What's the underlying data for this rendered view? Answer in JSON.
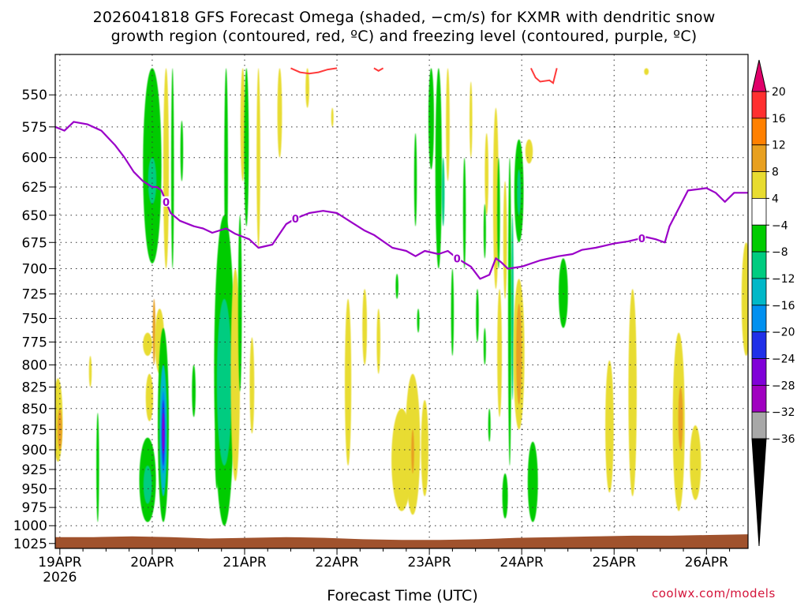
{
  "chart_data": {
    "type": "heatmap",
    "title_line1": "2026041818 GFS Forecast Omega (shaded, −cm/s) for KXMR with dendritic snow",
    "title_line2": "growth region (contoured, red, ºC) and freezing level (contoured, purple, ºC)",
    "xlabel": "Forecast Time (UTC)",
    "credit": "coolwx.com/models",
    "x_ticks": [
      {
        "day": 0,
        "label": "19APR",
        "sub": "2026"
      },
      {
        "day": 1,
        "label": "20APR",
        "sub": ""
      },
      {
        "day": 2,
        "label": "21APR",
        "sub": ""
      },
      {
        "day": 3,
        "label": "22APR",
        "sub": ""
      },
      {
        "day": 4,
        "label": "23APR",
        "sub": ""
      },
      {
        "day": 5,
        "label": "24APR",
        "sub": ""
      },
      {
        "day": 6,
        "label": "25APR",
        "sub": ""
      },
      {
        "day": 7,
        "label": "26APR",
        "sub": ""
      }
    ],
    "xlim_days": [
      -0.05,
      7.45
    ],
    "y_ticks": [
      550,
      575,
      600,
      625,
      650,
      675,
      700,
      725,
      750,
      775,
      800,
      825,
      850,
      875,
      900,
      925,
      950,
      975,
      1000,
      1025
    ],
    "ylim_hPa": [
      520,
      1032
    ],
    "y_scale": "pressure (reversed)",
    "colorbar": {
      "labels": [
        "20",
        "16",
        "12",
        "8",
        "4",
        "−4",
        "−8",
        "−12",
        "−16",
        "−20",
        "−24",
        "−28",
        "−32",
        "−36"
      ],
      "colors": [
        "#ff3030",
        "#ff8000",
        "#e8a020",
        "#e8dc30",
        "#ffffff",
        "#00cc00",
        "#00cc80",
        "#00b8c8",
        "#0090f0",
        "#2030e8",
        "#8000d8",
        "#a000c0",
        "#a8a8a8"
      ],
      "top_color": "#e0006a",
      "bottom_color": "#000000"
    },
    "omega_features": [
      {
        "day": -0.02,
        "p1": 815,
        "p2": 915,
        "w": 0.1,
        "color": "#e8dc30"
      },
      {
        "day": 0.0,
        "p1": 850,
        "p2": 900,
        "w": 0.05,
        "color": "#e8a020"
      },
      {
        "day": 0.33,
        "p1": 790,
        "p2": 825,
        "w": 0.03,
        "color": "#e8dc30"
      },
      {
        "day": 0.41,
        "p1": 855,
        "p2": 995,
        "w": 0.03,
        "color": "#00cc00"
      },
      {
        "day": 0.95,
        "p1": 765,
        "p2": 790,
        "w": 0.1,
        "color": "#e8dc30"
      },
      {
        "day": 0.97,
        "p1": 810,
        "p2": 865,
        "w": 0.08,
        "color": "#e8dc30"
      },
      {
        "day": 0.95,
        "p1": 885,
        "p2": 995,
        "w": 0.18,
        "color": "#00cc00"
      },
      {
        "day": 0.95,
        "p1": 920,
        "p2": 970,
        "w": 0.09,
        "color": "#00cc80"
      },
      {
        "day": 1.0,
        "p1": 530,
        "p2": 695,
        "w": 0.2,
        "color": "#00cc00"
      },
      {
        "day": 1.0,
        "p1": 600,
        "p2": 640,
        "w": 0.09,
        "color": "#00cc80"
      },
      {
        "day": 1.02,
        "p1": 730,
        "p2": 800,
        "w": 0.03,
        "color": "#e8a020"
      },
      {
        "day": 1.08,
        "p1": 740,
        "p2": 810,
        "w": 0.1,
        "color": "#e8dc30"
      },
      {
        "day": 1.12,
        "p1": 760,
        "p2": 995,
        "w": 0.12,
        "color": "#00cc00"
      },
      {
        "day": 1.12,
        "p1": 800,
        "p2": 960,
        "w": 0.08,
        "color": "#00b8c8"
      },
      {
        "day": 1.12,
        "p1": 830,
        "p2": 930,
        "w": 0.05,
        "color": "#0090f0"
      },
      {
        "day": 1.12,
        "p1": 840,
        "p2": 920,
        "w": 0.03,
        "color": "#2030e8"
      },
      {
        "day": 1.12,
        "p1": 855,
        "p2": 905,
        "w": 0.015,
        "color": "#8000d8"
      },
      {
        "day": 1.15,
        "p1": 530,
        "p2": 700,
        "w": 0.06,
        "color": "#e8dc30"
      },
      {
        "day": 1.22,
        "p1": 530,
        "p2": 700,
        "w": 0.03,
        "color": "#00cc00"
      },
      {
        "day": 1.32,
        "p1": 570,
        "p2": 620,
        "w": 0.03,
        "color": "#00cc00"
      },
      {
        "day": 1.45,
        "p1": 800,
        "p2": 860,
        "w": 0.04,
        "color": "#00cc00"
      },
      {
        "day": 1.7,
        "p1": 860,
        "p2": 950,
        "w": 0.04,
        "color": "#00cc00"
      },
      {
        "day": 1.78,
        "p1": 650,
        "p2": 1000,
        "w": 0.22,
        "color": "#00cc00"
      },
      {
        "day": 1.78,
        "p1": 730,
        "p2": 920,
        "w": 0.16,
        "color": "#00cc80"
      },
      {
        "day": 1.8,
        "p1": 530,
        "p2": 700,
        "w": 0.04,
        "color": "#00cc00"
      },
      {
        "day": 1.9,
        "p1": 700,
        "p2": 940,
        "w": 0.1,
        "color": "#e8dc30"
      },
      {
        "day": 1.95,
        "p1": 650,
        "p2": 830,
        "w": 0.04,
        "color": "#00cc00"
      },
      {
        "day": 2.08,
        "p1": 770,
        "p2": 880,
        "w": 0.05,
        "color": "#e8dc30"
      },
      {
        "day": 1.98,
        "p1": 530,
        "p2": 620,
        "w": 0.05,
        "color": "#e8dc30"
      },
      {
        "day": 2.02,
        "p1": 530,
        "p2": 660,
        "w": 0.05,
        "color": "#00cc00"
      },
      {
        "day": 2.15,
        "p1": 530,
        "p2": 680,
        "w": 0.04,
        "color": "#e8dc30"
      },
      {
        "day": 2.38,
        "p1": 530,
        "p2": 600,
        "w": 0.05,
        "color": "#e8dc30"
      },
      {
        "day": 2.68,
        "p1": 530,
        "p2": 560,
        "w": 0.04,
        "color": "#e8dc30"
      },
      {
        "day": 2.95,
        "p1": 560,
        "p2": 575,
        "w": 0.02,
        "color": "#e8dc30"
      },
      {
        "day": 3.12,
        "p1": 730,
        "p2": 920,
        "w": 0.07,
        "color": "#e8dc30"
      },
      {
        "day": 3.3,
        "p1": 720,
        "p2": 800,
        "w": 0.05,
        "color": "#e8dc30"
      },
      {
        "day": 3.45,
        "p1": 740,
        "p2": 810,
        "w": 0.04,
        "color": "#e8dc30"
      },
      {
        "day": 3.65,
        "p1": 705,
        "p2": 730,
        "w": 0.03,
        "color": "#00cc00"
      },
      {
        "day": 3.7,
        "p1": 850,
        "p2": 980,
        "w": 0.22,
        "color": "#e8dc30"
      },
      {
        "day": 3.82,
        "p1": 810,
        "p2": 985,
        "w": 0.16,
        "color": "#e8dc30"
      },
      {
        "day": 3.95,
        "p1": 840,
        "p2": 960,
        "w": 0.08,
        "color": "#e8dc30"
      },
      {
        "day": 3.82,
        "p1": 875,
        "p2": 930,
        "w": 0.03,
        "color": "#e8a020"
      },
      {
        "day": 3.88,
        "p1": 740,
        "p2": 765,
        "w": 0.02,
        "color": "#00cc00"
      },
      {
        "day": 3.85,
        "p1": 580,
        "p2": 660,
        "w": 0.03,
        "color": "#00cc00"
      },
      {
        "day": 4.02,
        "p1": 530,
        "p2": 610,
        "w": 0.06,
        "color": "#00cc00"
      },
      {
        "day": 4.1,
        "p1": 530,
        "p2": 700,
        "w": 0.07,
        "color": "#00cc00"
      },
      {
        "day": 4.15,
        "p1": 600,
        "p2": 660,
        "w": 0.03,
        "color": "#00cc80"
      },
      {
        "day": 4.2,
        "p1": 530,
        "p2": 620,
        "w": 0.04,
        "color": "#e8dc30"
      },
      {
        "day": 4.25,
        "p1": 700,
        "p2": 790,
        "w": 0.03,
        "color": "#00cc00"
      },
      {
        "day": 4.38,
        "p1": 600,
        "p2": 700,
        "w": 0.03,
        "color": "#00cc00"
      },
      {
        "day": 4.45,
        "p1": 540,
        "p2": 600,
        "w": 0.03,
        "color": "#e8dc30"
      },
      {
        "day": 4.52,
        "p1": 720,
        "p2": 775,
        "w": 0.03,
        "color": "#00cc00"
      },
      {
        "day": 4.62,
        "p1": 580,
        "p2": 650,
        "w": 0.04,
        "color": "#e8dc30"
      },
      {
        "day": 4.72,
        "p1": 560,
        "p2": 720,
        "w": 0.06,
        "color": "#e8dc30"
      },
      {
        "day": 4.75,
        "p1": 600,
        "p2": 700,
        "w": 0.03,
        "color": "#00cc00"
      },
      {
        "day": 4.6,
        "p1": 640,
        "p2": 690,
        "w": 0.02,
        "color": "#00cc00"
      },
      {
        "day": 4.6,
        "p1": 760,
        "p2": 800,
        "w": 0.02,
        "color": "#00cc00"
      },
      {
        "day": 4.65,
        "p1": 850,
        "p2": 890,
        "w": 0.02,
        "color": "#00cc00"
      },
      {
        "day": 4.82,
        "p1": 620,
        "p2": 730,
        "w": 0.04,
        "color": "#e8dc30"
      },
      {
        "day": 4.87,
        "p1": 600,
        "p2": 920,
        "w": 0.035,
        "color": "#00cc00"
      },
      {
        "day": 4.9,
        "p1": 650,
        "p2": 840,
        "w": 0.02,
        "color": "#00cc80"
      },
      {
        "day": 4.76,
        "p1": 720,
        "p2": 860,
        "w": 0.05,
        "color": "#e8dc30"
      },
      {
        "day": 4.95,
        "p1": 600,
        "p2": 650,
        "w": 0.03,
        "color": "#00cc00"
      },
      {
        "day": 4.97,
        "p1": 585,
        "p2": 675,
        "w": 0.1,
        "color": "#00cc00"
      },
      {
        "day": 4.97,
        "p1": 610,
        "p2": 650,
        "w": 0.04,
        "color": "#00cc80"
      },
      {
        "day": 5.08,
        "p1": 585,
        "p2": 605,
        "w": 0.08,
        "color": "#e8dc30"
      },
      {
        "day": 4.97,
        "p1": 710,
        "p2": 875,
        "w": 0.12,
        "color": "#e8dc30"
      },
      {
        "day": 4.97,
        "p1": 735,
        "p2": 845,
        "w": 0.06,
        "color": "#e8a020"
      },
      {
        "day": 4.82,
        "p1": 930,
        "p2": 990,
        "w": 0.06,
        "color": "#00cc00"
      },
      {
        "day": 5.12,
        "p1": 890,
        "p2": 995,
        "w": 0.11,
        "color": "#00cc00"
      },
      {
        "day": 5.45,
        "p1": 690,
        "p2": 760,
        "w": 0.1,
        "color": "#00cc00"
      },
      {
        "day": 5.95,
        "p1": 795,
        "p2": 955,
        "w": 0.09,
        "color": "#e8dc30"
      },
      {
        "day": 6.2,
        "p1": 720,
        "p2": 960,
        "w": 0.09,
        "color": "#e8dc30"
      },
      {
        "day": 6.35,
        "p1": 530,
        "p2": 535,
        "w": 0.05,
        "color": "#e8dc30"
      },
      {
        "day": 6.7,
        "p1": 765,
        "p2": 980,
        "w": 0.13,
        "color": "#e8dc30"
      },
      {
        "day": 6.72,
        "p1": 825,
        "p2": 900,
        "w": 0.05,
        "color": "#e8a020"
      },
      {
        "day": 6.88,
        "p1": 870,
        "p2": 965,
        "w": 0.12,
        "color": "#e8dc30"
      },
      {
        "day": 7.43,
        "p1": 675,
        "p2": 790,
        "w": 0.1,
        "color": "#e8dc30"
      }
    ],
    "dgz_contours": [
      [
        [
          2.5,
          530
        ],
        [
          2.6,
          533
        ],
        [
          2.7,
          534
        ],
        [
          2.8,
          533
        ],
        [
          2.9,
          531
        ],
        [
          3.0,
          530
        ]
      ],
      [
        [
          5.1,
          530
        ],
        [
          5.15,
          537
        ],
        [
          5.2,
          540
        ],
        [
          5.3,
          539
        ],
        [
          5.34,
          541
        ],
        [
          5.38,
          530
        ]
      ],
      [
        [
          3.4,
          530
        ],
        [
          3.45,
          532
        ],
        [
          3.5,
          530
        ]
      ]
    ],
    "freezing_level": {
      "label": "0",
      "days": [
        -0.05,
        0.05,
        0.15,
        0.3,
        0.45,
        0.6,
        0.7,
        0.8,
        0.9,
        1.0,
        1.05,
        1.1,
        1.2,
        1.3,
        1.45,
        1.55,
        1.65,
        1.8,
        1.9,
        2.05,
        2.15,
        2.3,
        2.45,
        2.55,
        2.7,
        2.85,
        3.0,
        3.15,
        3.3,
        3.4,
        3.6,
        3.75,
        3.85,
        3.95,
        4.1,
        4.2,
        4.3,
        4.45,
        4.55,
        4.65,
        4.72,
        4.78,
        4.85,
        5.0,
        5.2,
        5.4,
        5.55,
        5.65,
        5.8,
        6.0,
        6.15,
        6.25,
        6.35,
        6.45,
        6.55,
        6.6,
        6.8,
        7.0,
        7.1,
        7.2,
        7.3,
        7.45
      ],
      "pressures": [
        575,
        578,
        571,
        573,
        578,
        590,
        600,
        612,
        620,
        625,
        625,
        628,
        648,
        655,
        660,
        662,
        666,
        662,
        667,
        672,
        680,
        677,
        658,
        653,
        648,
        646,
        648,
        656,
        664,
        668,
        680,
        683,
        688,
        683,
        686,
        683,
        690,
        698,
        710,
        706,
        690,
        694,
        700,
        698,
        692,
        688,
        686,
        682,
        680,
        676,
        674,
        672,
        670,
        672,
        675,
        660,
        628,
        626,
        630,
        638,
        630,
        630
      ],
      "label_days": [
        1.15,
        2.55,
        4.3,
        6.3
      ]
    },
    "terrain": {
      "color": "#a0522d",
      "surface_pressures": [
        1016,
        1016,
        1015,
        1016,
        1018,
        1017,
        1016,
        1017,
        1019,
        1020,
        1020,
        1019,
        1017,
        1016,
        1015,
        1014,
        1014,
        1013,
        1012
      ]
    }
  }
}
